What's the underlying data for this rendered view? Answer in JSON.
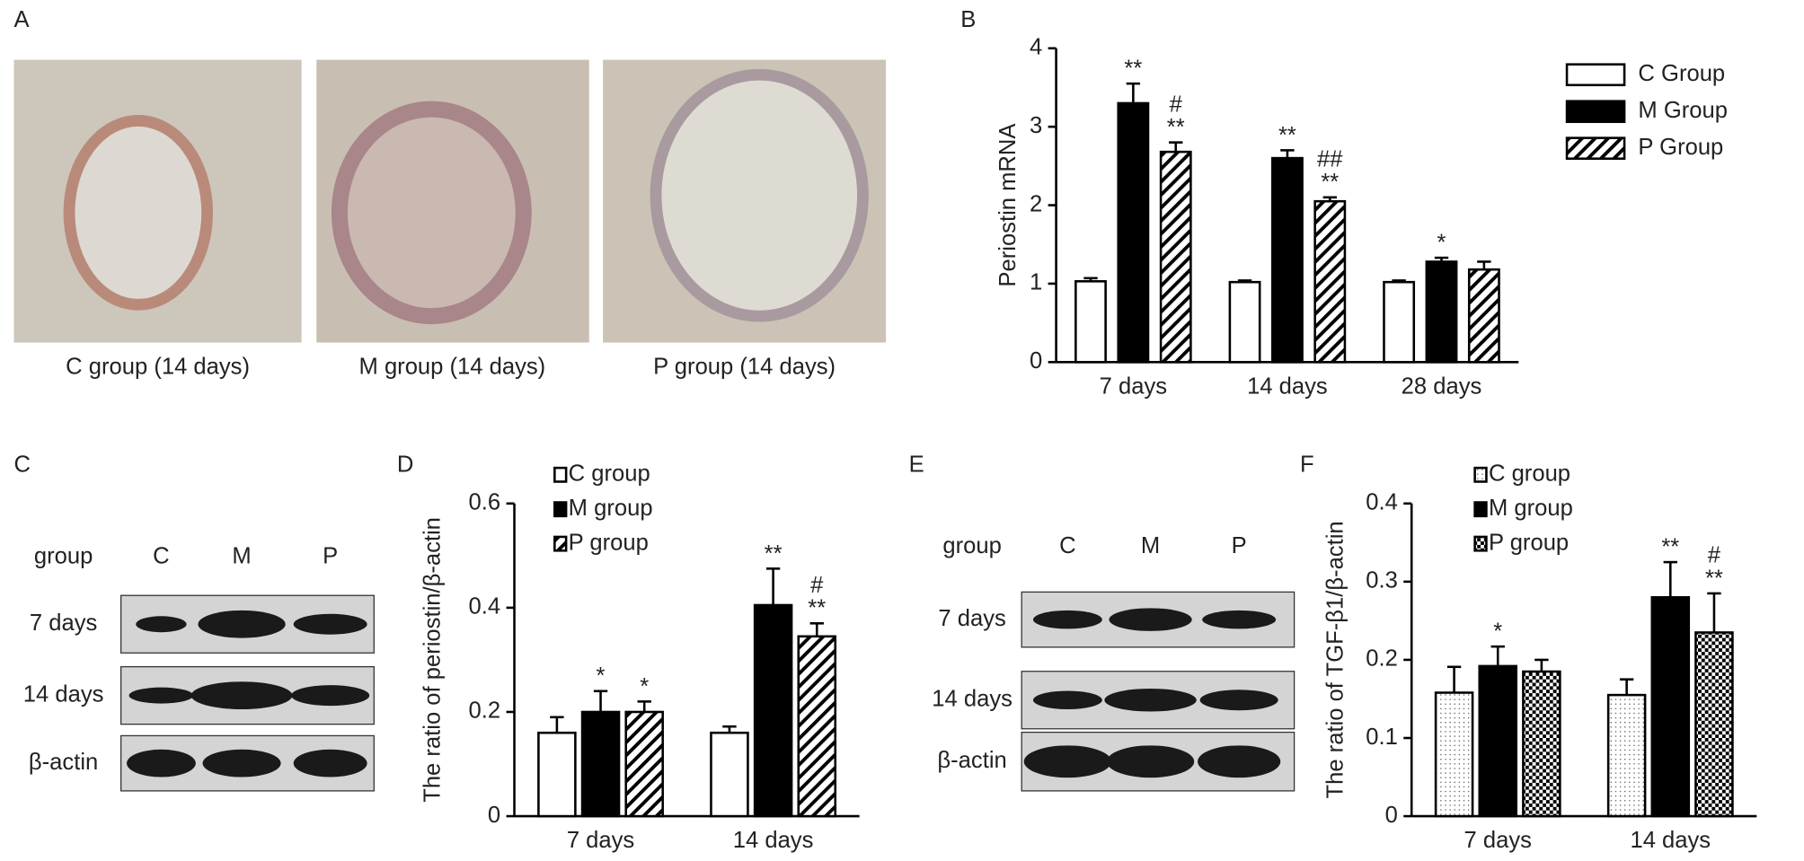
{
  "panel_labels": [
    "A",
    "B",
    "C",
    "D",
    "E",
    "F"
  ],
  "histology": {
    "captions": [
      "C group (14 days)",
      "M group (14 days)",
      "P group (14 days)"
    ]
  },
  "blots": [
    {
      "header": [
        "group",
        "C",
        "M",
        "P"
      ],
      "rows": [
        "7 days",
        "14 days",
        "β-actin"
      ]
    },
    {
      "header": [
        "group",
        "C",
        "M",
        "P"
      ],
      "rows": [
        "7 days",
        "14 days",
        "β-actin"
      ]
    }
  ],
  "chart_data": [
    {
      "type": "bar",
      "y_label": "Periostin mRNA",
      "legend": "right",
      "categories": [
        "7 days",
        "14 days",
        "28 days"
      ],
      "series": [
        {
          "name": "C Group",
          "color": "#000000",
          "pattern": "none",
          "values": [
            1.03,
            1.02,
            1.02
          ],
          "errors": [
            0.04,
            0.02,
            0.02
          ],
          "significance": [
            [],
            [],
            []
          ]
        },
        {
          "name": "M Group",
          "color": "#000000",
          "pattern": "solid",
          "values": [
            3.3,
            2.6,
            1.28
          ],
          "errors": [
            0.25,
            0.1,
            0.05
          ],
          "significance": [
            [
              "**"
            ],
            [
              "**"
            ],
            [
              "*"
            ]
          ]
        },
        {
          "name": "P Group",
          "color": "#000000",
          "pattern": "hatch",
          "values": [
            2.68,
            2.05,
            1.18
          ],
          "errors": [
            0.12,
            0.05,
            0.1
          ],
          "significance": [
            [
              "#",
              "**"
            ],
            [
              "##",
              "**"
            ],
            []
          ]
        }
      ],
      "ylim": [
        0,
        4
      ],
      "yticks": [
        0,
        1,
        2,
        3,
        4
      ]
    },
    {
      "type": "bar",
      "y_label": "The ratio of periostin/β-actin",
      "legend": "top",
      "categories": [
        "7 days",
        "14 days"
      ],
      "series": [
        {
          "name": "C group",
          "color": "#000000",
          "pattern": "none",
          "values": [
            0.16,
            0.16
          ],
          "errors": [
            0.03,
            0.012
          ],
          "significance": [
            [],
            []
          ]
        },
        {
          "name": "M group",
          "color": "#000000",
          "pattern": "solid",
          "values": [
            0.2,
            0.405
          ],
          "errors": [
            0.04,
            0.07
          ],
          "significance": [
            [
              "*"
            ],
            [
              "**"
            ]
          ]
        },
        {
          "name": "P group",
          "color": "#000000",
          "pattern": "hatch",
          "values": [
            0.2,
            0.345
          ],
          "errors": [
            0.02,
            0.025
          ],
          "significance": [
            [
              "*"
            ],
            [
              "#",
              "**"
            ]
          ]
        }
      ],
      "ylim": [
        0,
        0.6
      ],
      "yticks": [
        0,
        0.2,
        0.4,
        0.6
      ]
    },
    {
      "type": "bar",
      "y_label": "The ratio of TGF-β1/β-actin",
      "legend": "top",
      "categories": [
        "7 days",
        "14 days"
      ],
      "series": [
        {
          "name": "C group",
          "color": "#000000",
          "pattern": "dots",
          "values": [
            0.158,
            0.155
          ],
          "errors": [
            0.033,
            0.02
          ],
          "significance": [
            [],
            []
          ]
        },
        {
          "name": "M group",
          "color": "#000000",
          "pattern": "solid",
          "values": [
            0.192,
            0.28
          ],
          "errors": [
            0.025,
            0.045
          ],
          "significance": [
            [
              "*"
            ],
            [
              "**"
            ]
          ]
        },
        {
          "name": "P group",
          "color": "#000000",
          "pattern": "checker",
          "values": [
            0.185,
            0.235
          ],
          "errors": [
            0.015,
            0.05
          ],
          "significance": [
            [],
            [
              "#",
              "**"
            ]
          ]
        }
      ],
      "ylim": [
        0,
        0.4
      ],
      "yticks": [
        0,
        0.1,
        0.2,
        0.3,
        0.4
      ]
    }
  ]
}
